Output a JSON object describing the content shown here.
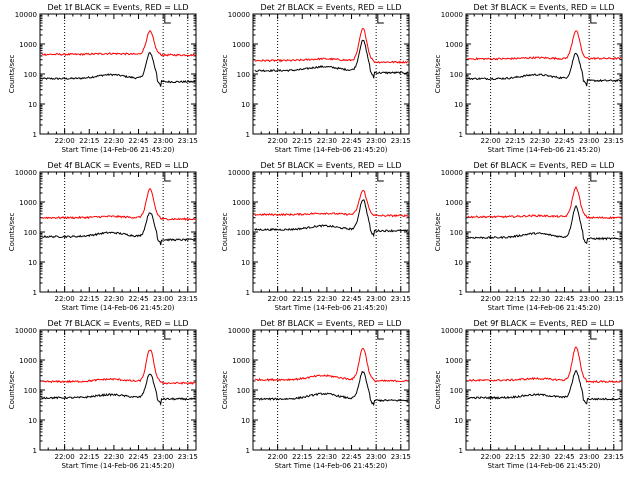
{
  "page": {
    "background": "#ffffff",
    "colors": {
      "events": "#000000",
      "lld": "#ff0000",
      "axes": "#000000"
    }
  },
  "shared": {
    "ylabel": "Counts/sec",
    "xlabel": "Start Time (14-Feb-06 21:45:20)",
    "x_ticks": [
      "22:00",
      "22:15",
      "22:30",
      "22:45",
      "23:00",
      "23:15"
    ],
    "y_ticks": [
      "1",
      "10",
      "100",
      "1000",
      "10000"
    ],
    "y_scale": "log",
    "ylim": [
      1,
      10000
    ]
  },
  "chart_data": [
    {
      "type": "line",
      "title": "Det 1f BLACK = Events, RED = LLD",
      "dotted_x": [
        "22:00",
        "23:00",
        "23:15"
      ],
      "x_range": [
        "21:45",
        "23:20"
      ],
      "series": [
        {
          "color": "#000000",
          "base": 70,
          "bump_at": "22:28",
          "bump_value": 95,
          "peak_at": "22:52",
          "peak_value": 500,
          "after": 55
        },
        {
          "color": "#ff0000",
          "base": 450,
          "bump_at": "22:28",
          "bump_value": 480,
          "peak_at": "22:52",
          "peak_value": 2600,
          "after": 430
        }
      ]
    },
    {
      "type": "line",
      "title": "Det 2f BLACK = Events, RED = LLD",
      "dotted_x": [
        "22:00",
        "23:00",
        "23:15"
      ],
      "x_range": [
        "21:45",
        "23:20"
      ],
      "series": [
        {
          "color": "#000000",
          "base": 130,
          "bump_at": "22:28",
          "bump_value": 175,
          "peak_at": "22:52",
          "peak_value": 1300,
          "after": 110
        },
        {
          "color": "#ff0000",
          "base": 280,
          "bump_at": "22:28",
          "bump_value": 320,
          "peak_at": "22:52",
          "peak_value": 3200,
          "after": 250
        }
      ]
    },
    {
      "type": "line",
      "title": "Det 3f BLACK = Events, RED = LLD",
      "dotted_x": [
        "22:00",
        "23:00",
        "23:15"
      ],
      "x_range": [
        "21:45",
        "23:20"
      ],
      "series": [
        {
          "color": "#000000",
          "base": 70,
          "bump_at": "22:28",
          "bump_value": 95,
          "peak_at": "22:52",
          "peak_value": 500,
          "after": 60
        },
        {
          "color": "#ff0000",
          "base": 320,
          "bump_at": "22:28",
          "bump_value": 350,
          "peak_at": "22:52",
          "peak_value": 2800,
          "after": 330
        }
      ]
    },
    {
      "type": "line",
      "title": "Det 4f BLACK = Events, RED = LLD",
      "dotted_x": [
        "22:00",
        "23:00",
        "23:15"
      ],
      "x_range": [
        "21:45",
        "23:20"
      ],
      "series": [
        {
          "color": "#000000",
          "base": 70,
          "bump_at": "22:28",
          "bump_value": 95,
          "peak_at": "22:52",
          "peak_value": 450,
          "after": 55
        },
        {
          "color": "#ff0000",
          "base": 300,
          "bump_at": "22:28",
          "bump_value": 330,
          "peak_at": "22:52",
          "peak_value": 2600,
          "after": 270
        }
      ]
    },
    {
      "type": "line",
      "title": "Det 5f BLACK = Events, RED = LLD",
      "dotted_x": [
        "22:00",
        "23:00",
        "23:15"
      ],
      "x_range": [
        "21:45",
        "23:20"
      ],
      "series": [
        {
          "color": "#000000",
          "base": 120,
          "bump_at": "22:28",
          "bump_value": 160,
          "peak_at": "22:52",
          "peak_value": 1200,
          "after": 110
        },
        {
          "color": "#ff0000",
          "base": 380,
          "bump_at": "22:28",
          "bump_value": 420,
          "peak_at": "22:52",
          "peak_value": 2400,
          "after": 350
        }
      ]
    },
    {
      "type": "line",
      "title": "Det 6f BLACK = Events, RED = LLD",
      "dotted_x": [
        "22:00",
        "23:00",
        "23:15"
      ],
      "x_range": [
        "21:45",
        "23:20"
      ],
      "series": [
        {
          "color": "#000000",
          "base": 65,
          "bump_at": "22:28",
          "bump_value": 90,
          "peak_at": "22:52",
          "peak_value": 700,
          "after": 60
        },
        {
          "color": "#ff0000",
          "base": 320,
          "bump_at": "22:28",
          "bump_value": 350,
          "peak_at": "22:52",
          "peak_value": 3000,
          "after": 300
        }
      ]
    },
    {
      "type": "line",
      "title": "Det 7f BLACK = Events, RED = LLD",
      "dotted_x": [
        "22:00",
        "23:00",
        "23:15"
      ],
      "x_range": [
        "21:45",
        "23:20"
      ],
      "series": [
        {
          "color": "#000000",
          "base": 55,
          "bump_at": "22:28",
          "bump_value": 70,
          "peak_at": "22:52",
          "peak_value": 350,
          "after": 50
        },
        {
          "color": "#ff0000",
          "base": 190,
          "bump_at": "22:28",
          "bump_value": 230,
          "peak_at": "22:52",
          "peak_value": 2200,
          "after": 170
        }
      ]
    },
    {
      "type": "line",
      "title": "Det 8f BLACK = Events, RED = LLD",
      "dotted_x": [
        "22:00",
        "23:00",
        "23:15"
      ],
      "x_range": [
        "21:45",
        "23:20"
      ],
      "series": [
        {
          "color": "#000000",
          "base": 50,
          "bump_at": "22:28",
          "bump_value": 75,
          "peak_at": "22:52",
          "peak_value": 400,
          "after": 45
        },
        {
          "color": "#ff0000",
          "base": 220,
          "bump_at": "22:28",
          "bump_value": 300,
          "peak_at": "22:52",
          "peak_value": 2500,
          "after": 200
        }
      ]
    },
    {
      "type": "line",
      "title": "Det 9f BLACK = Events, RED = LLD",
      "dotted_x": [
        "22:00",
        "23:00",
        "23:15"
      ],
      "x_range": [
        "21:45",
        "23:20"
      ],
      "series": [
        {
          "color": "#000000",
          "base": 55,
          "bump_at": "22:28",
          "bump_value": 70,
          "peak_at": "22:52",
          "peak_value": 420,
          "after": 50
        },
        {
          "color": "#ff0000",
          "base": 210,
          "bump_at": "22:28",
          "bump_value": 240,
          "peak_at": "22:52",
          "peak_value": 2600,
          "after": 190
        }
      ]
    }
  ]
}
